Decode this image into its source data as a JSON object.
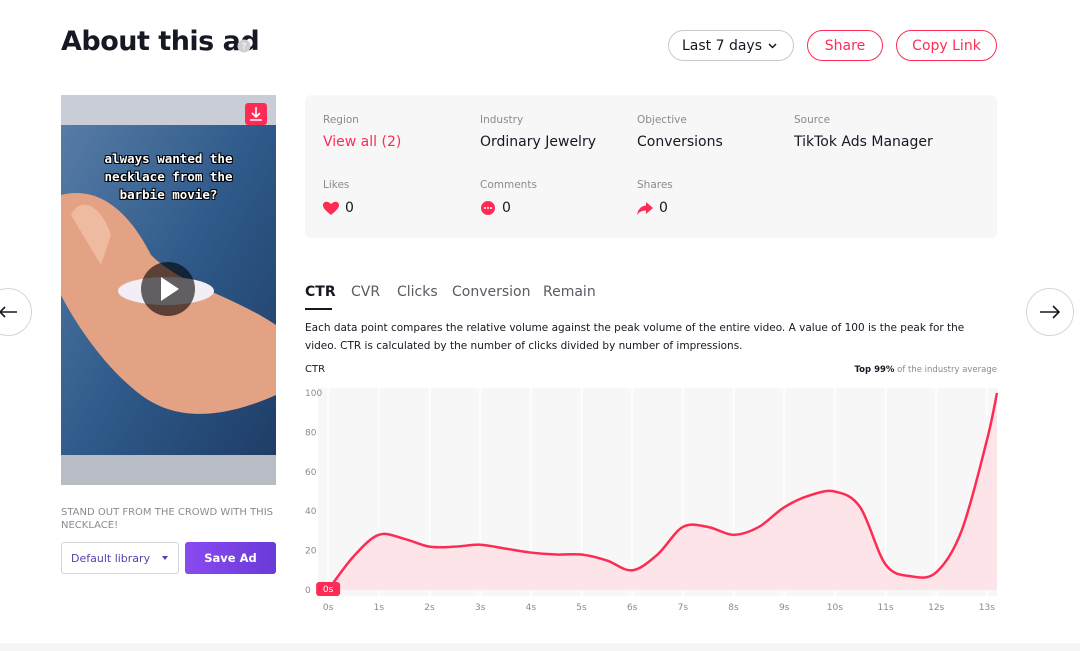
{
  "header": {
    "title": "About this ad",
    "date_range": "Last 7 days",
    "share": "Share",
    "copy_link": "Copy Link"
  },
  "video": {
    "caption": "always wanted the necklace from the barbie movie?",
    "description": "STAND OUT FROM THE CROWD WITH THIS NECKLACE!",
    "library": "Default library",
    "save": "Save Ad"
  },
  "info": {
    "fields": [
      {
        "label": "Region",
        "value": "View all (2)"
      },
      {
        "label": "Industry",
        "value": "Ordinary Jewelry"
      },
      {
        "label": "Objective",
        "value": "Conversions"
      },
      {
        "label": "Source",
        "value": "TikTok Ads Manager"
      }
    ],
    "metrics": [
      {
        "label": "Likes",
        "value": 0
      },
      {
        "label": "Comments",
        "value": 0
      },
      {
        "label": "Shares",
        "value": 0
      }
    ]
  },
  "tabs": [
    "CTR",
    "CVR",
    "Clicks",
    "Conversion",
    "Remain"
  ],
  "description": "Each data point compares the relative volume against the peak volume of the entire video. A value of 100 is the peak for the video. CTR is calculated by the number of clicks divided by number of impressions.",
  "chart_data": {
    "type": "line",
    "y_label": "CTR",
    "note_strong": "Top 99%",
    "note": "of the industry average",
    "color": "#fe2c55",
    "x": [
      0,
      0.5,
      1,
      1.5,
      2,
      2.5,
      3,
      3.5,
      4,
      4.5,
      5,
      5.5,
      6,
      6.5,
      7,
      7.5,
      8,
      8.5,
      9,
      9.5,
      10,
      10.5,
      11,
      11.5,
      12,
      12.5,
      13,
      13.2
    ],
    "values": [
      0,
      17,
      28,
      26,
      22,
      22,
      23,
      21,
      19,
      18,
      18,
      15,
      10,
      18,
      32,
      32,
      28,
      32,
      42,
      48,
      50,
      42,
      13,
      7,
      9,
      30,
      76,
      100
    ],
    "xlim": [
      -0.2,
      13.2
    ],
    "xticks": [
      {
        "value": 0,
        "label": "0s"
      },
      {
        "value": 1,
        "label": "1s"
      },
      {
        "value": 2,
        "label": "2s"
      },
      {
        "value": 3,
        "label": "3s"
      },
      {
        "value": 4,
        "label": "4s"
      },
      {
        "value": 5,
        "label": "5s"
      },
      {
        "value": 6,
        "label": "6s"
      },
      {
        "value": 7,
        "label": "7s"
      },
      {
        "value": 8,
        "label": "8s"
      },
      {
        "value": 9,
        "label": "9s"
      },
      {
        "value": 10,
        "label": "10s"
      },
      {
        "value": 11,
        "label": "11s"
      },
      {
        "value": 12,
        "label": "12s"
      },
      {
        "value": 13,
        "label": "13s"
      }
    ],
    "ylim": [
      0,
      100
    ],
    "yticks": [
      0,
      20,
      40,
      60,
      80,
      100
    ],
    "grid": true
  }
}
